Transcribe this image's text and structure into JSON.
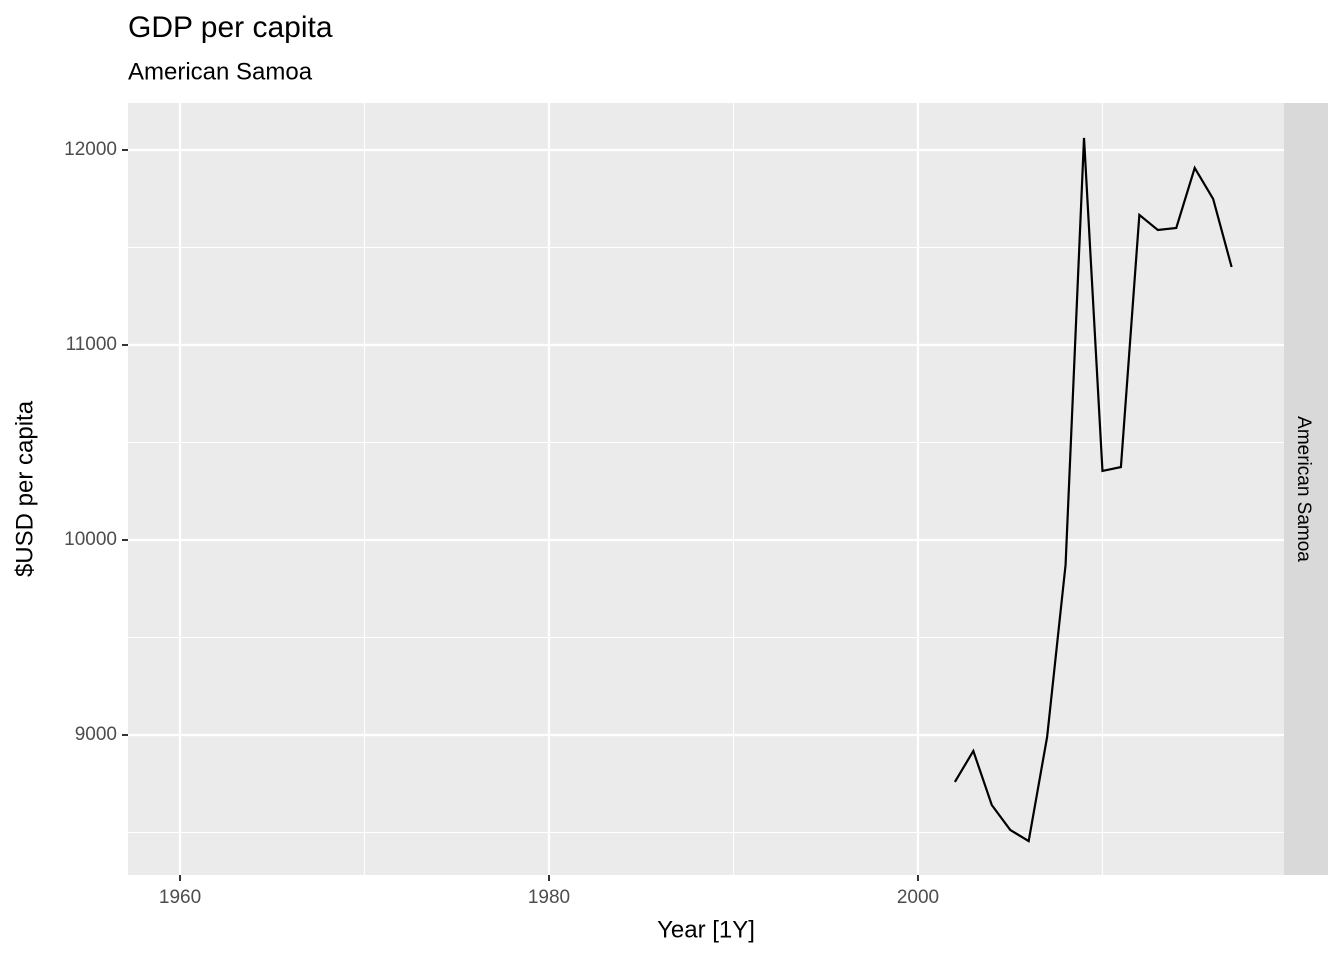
{
  "chart_data": {
    "type": "line",
    "title": "GDP per capita",
    "subtitle": "American Samoa",
    "x_label": "Year [1Y]",
    "y_label": "$USD per capita",
    "facet_label": "American Samoa",
    "x": [
      2002,
      2003,
      2004,
      2005,
      2006,
      2007,
      2008,
      2009,
      2010,
      2011,
      2012,
      2013,
      2014,
      2015,
      2016,
      2017
    ],
    "series": [
      {
        "name": "American Samoa",
        "color": "#000000",
        "values": [
          8759,
          8918,
          8641,
          8513,
          8456,
          8990,
          9872,
          12062,
          10354,
          10374,
          11667,
          11590,
          11600,
          11908,
          11749,
          11400
        ]
      }
    ],
    "xlim": [
      1957.18,
      2019.84
    ],
    "xticks": [
      1960,
      1980,
      2000
    ],
    "x_minor_grid": [
      1970,
      1990,
      2010
    ],
    "ylim": [
      8282,
      12241
    ],
    "yticks": [
      9000,
      10000,
      11000,
      12000
    ],
    "y_minor_grid": [
      8500,
      9500,
      10500,
      11500
    ],
    "grid": true,
    "legend": false
  }
}
